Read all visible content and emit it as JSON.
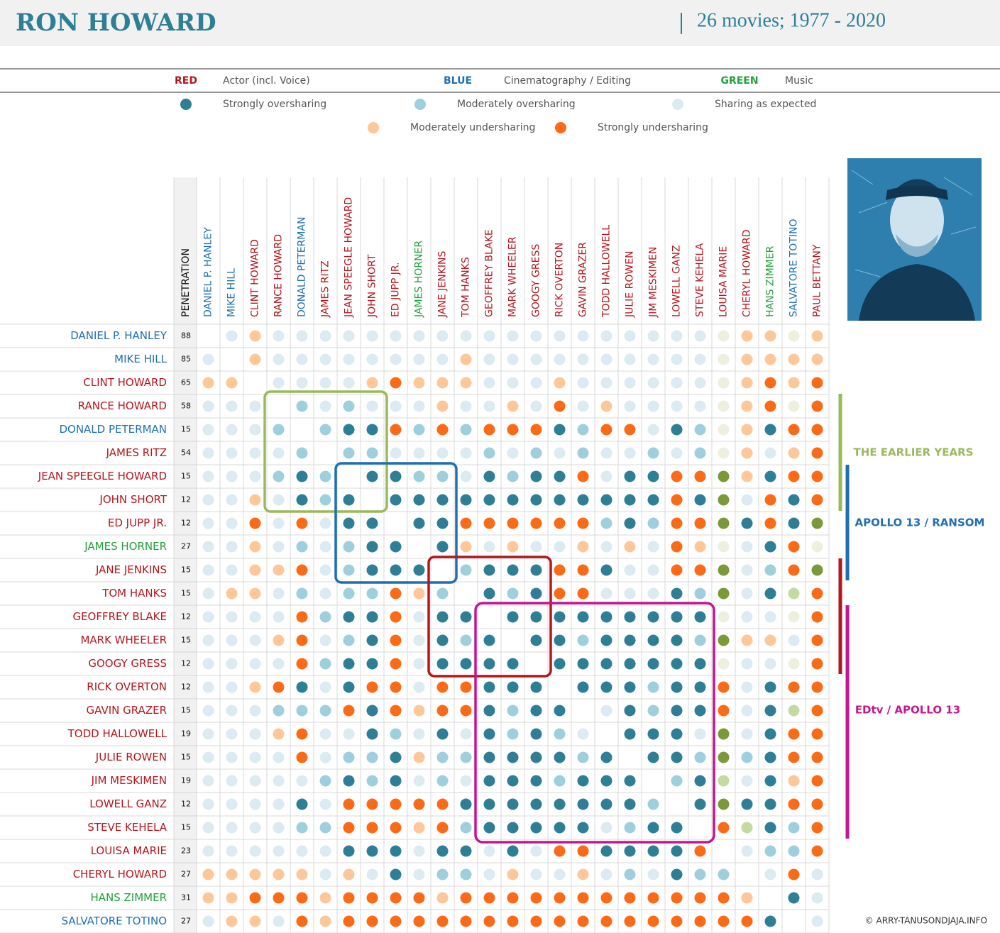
{
  "header": {
    "title": "RON HOWARD",
    "subtitle": "26 movies; 1977 - 2020"
  },
  "legend": {
    "roles": [
      {
        "key": "RED",
        "label": "Actor (incl. Voice)",
        "color": "#b5161c"
      },
      {
        "key": "BLUE",
        "label": "Cinematography / Editing",
        "color": "#1f6fb2"
      },
      {
        "key": "GREEN",
        "label": "Music",
        "color": "#22a03a"
      }
    ],
    "levels": [
      {
        "label": "Strongly oversharing",
        "code": "S"
      },
      {
        "label": "Moderately oversharing",
        "code": "M"
      },
      {
        "label": "Sharing as expected",
        "code": "E"
      },
      {
        "label": "Moderately undersharing",
        "code": "P"
      },
      {
        "label": "Strongly undersharing",
        "code": "O"
      }
    ]
  },
  "palette": {
    "S": "#2e7f96",
    "M": "#9fcfdd",
    "E": "#dcebf1",
    "P": "#fdc79a",
    "O": "#fb6a16",
    "G": "#7a9a3a",
    "g": "#c3dba0",
    "e": "#edf0df"
  },
  "matrix": {
    "penetration_label": "PENETRATION",
    "columns": [
      {
        "name": "DANIEL P. HANLEY",
        "color": "#1f6fb2"
      },
      {
        "name": "MIKE HILL",
        "color": "#1f6fb2"
      },
      {
        "name": "CLINT HOWARD",
        "color": "#b5161c"
      },
      {
        "name": "RANCE HOWARD",
        "color": "#b5161c"
      },
      {
        "name": "DONALD PETERMAN",
        "color": "#1f6fb2"
      },
      {
        "name": "JAMES RITZ",
        "color": "#b5161c"
      },
      {
        "name": "JEAN SPEEGLE HOWARD",
        "color": "#b5161c"
      },
      {
        "name": "JOHN SHORT",
        "color": "#b5161c"
      },
      {
        "name": "ED JUPP JR.",
        "color": "#b5161c"
      },
      {
        "name": "JAMES HORNER",
        "color": "#22a03a"
      },
      {
        "name": "JANE JENKINS",
        "color": "#b5161c"
      },
      {
        "name": "TOM HANKS",
        "color": "#b5161c"
      },
      {
        "name": "GEOFFREY BLAKE",
        "color": "#b5161c"
      },
      {
        "name": "MARK WHEELER",
        "color": "#b5161c"
      },
      {
        "name": "GOOGY GRESS",
        "color": "#b5161c"
      },
      {
        "name": "RICK OVERTON",
        "color": "#b5161c"
      },
      {
        "name": "GAVIN GRAZER",
        "color": "#b5161c"
      },
      {
        "name": "TODD HALLOWELL",
        "color": "#b5161c"
      },
      {
        "name": "JULIE ROWEN",
        "color": "#b5161c"
      },
      {
        "name": "JIM MESKIMEN",
        "color": "#b5161c"
      },
      {
        "name": "LOWELL GANZ",
        "color": "#b5161c"
      },
      {
        "name": "STEVE KEHELA",
        "color": "#b5161c"
      },
      {
        "name": "LOUISA MARIE",
        "color": "#b5161c"
      },
      {
        "name": "CHERYL HOWARD",
        "color": "#b5161c"
      },
      {
        "name": "HANS ZIMMER",
        "color": "#22a03a"
      },
      {
        "name": "SALVATORE TOTINO",
        "color": "#1f6fb2"
      },
      {
        "name": "PAUL BETTANY",
        "color": "#b5161c"
      }
    ],
    "rows": [
      {
        "name": "DANIEL P. HANLEY",
        "color": "#1f6fb2",
        "penetration": 88,
        "cells": ".EPEEEEEEEEEEEEEEEEEEEePPeP"
      },
      {
        "name": "MIKE HILL",
        "color": "#1f6fb2",
        "penetration": 85,
        "cells": "E.PEEEEEEEEPEEEEEEEEEEePPPP"
      },
      {
        "name": "CLINT HOWARD",
        "color": "#b5161c",
        "penetration": 65,
        "cells": "PP.EEEEPOPPPEEEPEEEEEEePOPO"
      },
      {
        "name": "RANCE HOWARD",
        "color": "#b5161c",
        "penetration": 58,
        "cells": "EEE.MEMEEEPEEPEOEPEEEEePOeO"
      },
      {
        "name": "DONALD PETERMAN",
        "color": "#1f6fb2",
        "penetration": 15,
        "cells": "EEEM.MSSOMOMOOOSMOOESMePSOO"
      },
      {
        "name": "JAMES RITZ",
        "color": "#b5161c",
        "penetration": 54,
        "cells": "EEEEM.MMEEEEMEMEMEEMEMePEPO"
      },
      {
        "name": "JEAN SPEEGLE HOWARD",
        "color": "#b5161c",
        "penetration": 15,
        "cells": "EEEMSM.SSMMESMSSOESSOOGPSOO"
      },
      {
        "name": "JOHN SHORT",
        "color": "#b5161c",
        "penetration": 12,
        "cells": "EEPESMS.SSSSSSSSSSSSOSGEOSO"
      },
      {
        "name": "ED JUPP JR.",
        "color": "#b5161c",
        "penetration": 12,
        "cells": "EEOEOESS.SSOOOOOOMSMOOGSOSG"
      },
      {
        "name": "JAMES HORNER",
        "color": "#22a03a",
        "penetration": 27,
        "cells": "EEPEMEMSS.SPEPEEPEPEOPeESOe"
      },
      {
        "name": "JANE JENKINS",
        "color": "#b5161c",
        "penetration": 15,
        "cells": "EEPPOEMSSS.MSSSOOSEEOOGEMOG"
      },
      {
        "name": "TOM HANKS",
        "color": "#b5161c",
        "penetration": 15,
        "cells": "EPPEMEMMOPM.SMSOOEEESMGESgO"
      },
      {
        "name": "GEOFFREY BLAKE",
        "color": "#b5161c",
        "penetration": 12,
        "cells": "EEEEOMSSOESS.SSSSSSSSSeEEeO"
      },
      {
        "name": "MARK WHEELER",
        "color": "#b5161c",
        "penetration": 15,
        "cells": "EEEPOEMSOESMS.SSMSSSSMGPPEO"
      },
      {
        "name": "GOOGY GRESS",
        "color": "#b5161c",
        "penetration": 12,
        "cells": "EEEEOMSSOESSSS.SSSSSSSeEEeO"
      },
      {
        "name": "RICK OVERTON",
        "color": "#b5161c",
        "penetration": 12,
        "cells": "EEPOSESOOEOOSSS.SSSMSSOESOO"
      },
      {
        "name": "GAVIN GRAZER",
        "color": "#b5161c",
        "penetration": 15,
        "cells": "EEEMMMOSOPOOSMSS.ESMSSOESgO"
      },
      {
        "name": "TODD HALLOWELL",
        "color": "#b5161c",
        "penetration": 19,
        "cells": "EEEPOEESMESESMSME.SSSEGESOO"
      },
      {
        "name": "JULIE ROWEN",
        "color": "#b5161c",
        "penetration": 15,
        "cells": "EEEEOEMMSPMMSSSSMS.SSMGMSOO"
      },
      {
        "name": "JIM MESKIMEN",
        "color": "#b5161c",
        "penetration": 19,
        "cells": "EEEEEMSMSEMESSSMSSS.MSgESPO"
      },
      {
        "name": "LOWELL GANZ",
        "color": "#b5161c",
        "penetration": 12,
        "cells": "EEEESEOOOOOSSSSSSSSM.SGSSOO"
      },
      {
        "name": "STEVE KEHELA",
        "color": "#b5161c",
        "penetration": 15,
        "cells": "EEEEMMOOOPOMSSSSSEMSS.OgSMO"
      },
      {
        "name": "LOUISA MARIE",
        "color": "#b5161c",
        "penetration": 23,
        "cells": "EEEEEESSSESSESEOOSSSSO.EMMO"
      },
      {
        "name": "CHERYL HOWARD",
        "color": "#b5161c",
        "penetration": 27,
        "cells": "PPPPPEPESEMMEPEEPEMESMM.EOE"
      },
      {
        "name": "HANS ZIMMER",
        "color": "#22a03a",
        "penetration": 31,
        "cells": "PPOOOPOOOOPOOOOOOOOOOOOP.SE"
      },
      {
        "name": "SALVATORE TOTINO",
        "color": "#1f6fb2",
        "penetration": 27,
        "cells": "EPPEOPOOOOOOOOOOOOOOOOOOS.E"
      }
    ]
  },
  "groups": [
    {
      "label": "THE EARLIER YEARS",
      "color": "#9aba5a"
    },
    {
      "label": "APOLLO 13 / RANSOM",
      "color": "#1f6fb2"
    },
    {
      "label": "EDtv / APOLLO 13",
      "color": "#c4168f"
    }
  ],
  "credit": "© ARRY-TANUSONDJAJA.INFO"
}
